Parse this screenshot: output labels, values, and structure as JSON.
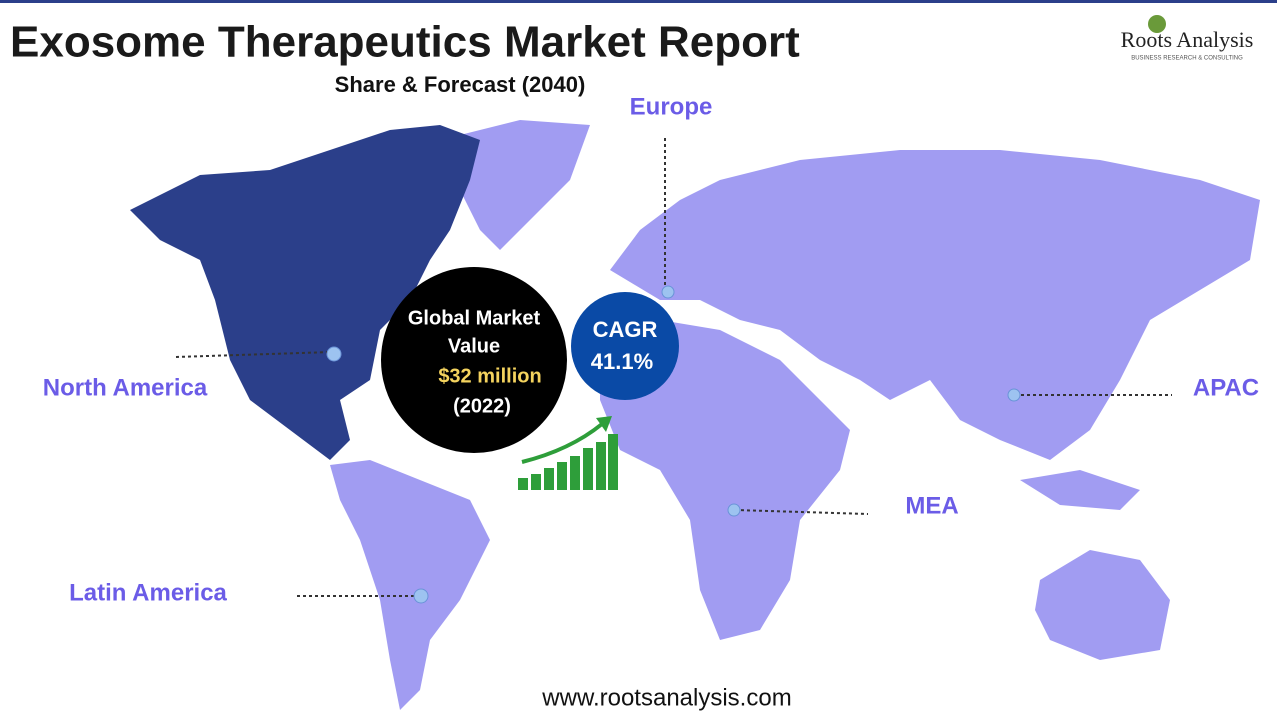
{
  "header": {
    "title": "Exosome Therapeutics Market Report",
    "subtitle": "Share & Forecast (2040)"
  },
  "logo": {
    "name": "Roots Analysis",
    "tagline": "BUSINESS RESEARCH & CONSULTING"
  },
  "regions": [
    {
      "label": "Europe"
    },
    {
      "label": "North America"
    },
    {
      "label": "APAC"
    },
    {
      "label": "MEA"
    },
    {
      "label": "Latin America"
    }
  ],
  "market": {
    "line1": "Global Market",
    "line2": "Value",
    "value": "$32 million",
    "year": "(2022)"
  },
  "cagr": {
    "label": "CAGR",
    "value": "41.1%"
  },
  "footer": {
    "url": "www.rootsanalysis.com"
  }
}
